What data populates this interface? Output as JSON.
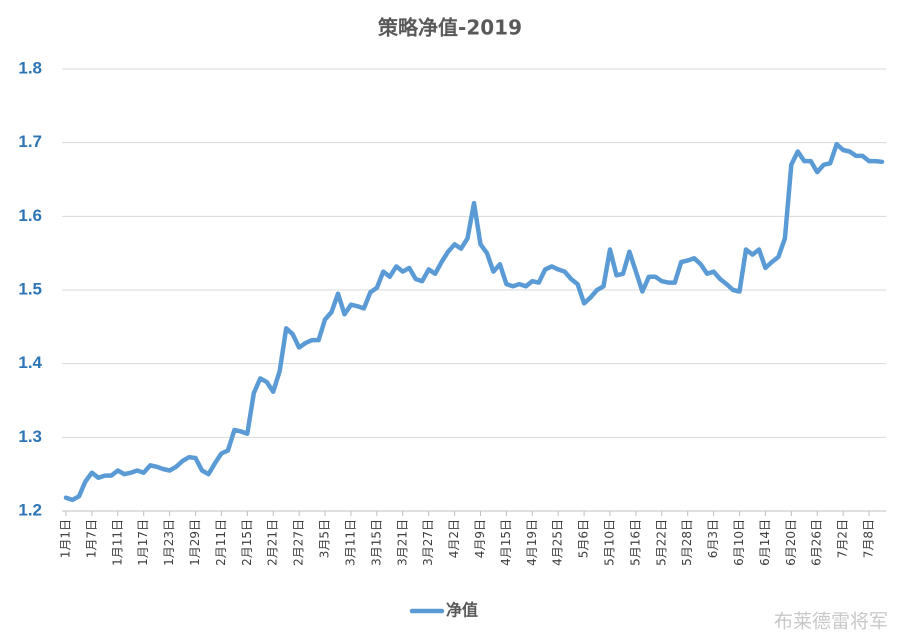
{
  "chart_data": {
    "type": "line",
    "title": "策略净值-2019",
    "categories": [
      "1月1日",
      null,
      null,
      null,
      "1月7日",
      null,
      null,
      null,
      "1月11日",
      null,
      null,
      null,
      "1月17日",
      null,
      null,
      null,
      "1月23日",
      null,
      null,
      null,
      "1月29日",
      null,
      null,
      null,
      "2月11日",
      null,
      null,
      null,
      "2月15日",
      null,
      null,
      null,
      "2月21日",
      null,
      null,
      null,
      "2月27日",
      null,
      null,
      null,
      "3月5日",
      null,
      null,
      null,
      "3月11日",
      null,
      null,
      null,
      "3月15日",
      null,
      null,
      null,
      "3月21日",
      null,
      null,
      null,
      "3月27日",
      null,
      null,
      null,
      "4月2日",
      null,
      null,
      null,
      "4月9日",
      null,
      null,
      null,
      "4月15日",
      null,
      null,
      null,
      "4月19日",
      null,
      null,
      null,
      "4月25日",
      null,
      null,
      null,
      "5月6日",
      null,
      null,
      null,
      "5月10日",
      null,
      null,
      null,
      "5月16日",
      null,
      null,
      null,
      "5月22日",
      null,
      null,
      null,
      "5月28日",
      null,
      null,
      null,
      "6月3日",
      null,
      null,
      null,
      "6月10日",
      null,
      null,
      null,
      "6月14日",
      null,
      null,
      null,
      "6月20日",
      null,
      null,
      null,
      "6月26日",
      null,
      null,
      null,
      "7月2日",
      null,
      null,
      null,
      "7月8日",
      null,
      null
    ],
    "series": [
      {
        "name": "净值",
        "color": "#5b9bd5",
        "values": [
          1.218,
          1.215,
          1.22,
          1.24,
          1.252,
          1.245,
          1.248,
          1.248,
          1.255,
          1.25,
          1.252,
          1.255,
          1.252,
          1.262,
          1.26,
          1.257,
          1.255,
          1.26,
          1.268,
          1.273,
          1.272,
          1.255,
          1.25,
          1.265,
          1.278,
          1.282,
          1.31,
          1.308,
          1.305,
          1.36,
          1.38,
          1.375,
          1.362,
          1.39,
          1.448,
          1.44,
          1.422,
          1.428,
          1.432,
          1.432,
          1.46,
          1.47,
          1.495,
          1.467,
          1.48,
          1.478,
          1.475,
          1.497,
          1.503,
          1.525,
          1.518,
          1.532,
          1.525,
          1.53,
          1.515,
          1.512,
          1.528,
          1.522,
          1.538,
          1.552,
          1.562,
          1.556,
          1.57,
          1.618,
          1.562,
          1.55,
          1.525,
          1.535,
          1.508,
          1.505,
          1.508,
          1.505,
          1.512,
          1.51,
          1.528,
          1.532,
          1.528,
          1.525,
          1.515,
          1.508,
          1.482,
          1.49,
          1.5,
          1.505,
          1.555,
          1.52,
          1.522,
          1.552,
          1.525,
          1.498,
          1.518,
          1.518,
          1.512,
          1.51,
          1.51,
          1.538,
          1.54,
          1.543,
          1.535,
          1.522,
          1.525,
          1.515,
          1.508,
          1.5,
          1.498,
          1.555,
          1.548,
          1.555,
          1.53,
          1.538,
          1.545,
          1.57,
          1.67,
          1.688,
          1.675,
          1.675,
          1.66,
          1.67,
          1.672,
          1.698,
          1.69,
          1.688,
          1.682,
          1.682,
          1.675,
          1.675,
          1.674
        ]
      }
    ],
    "ylim": [
      1.2,
      1.8
    ],
    "yticks": [
      1.2,
      1.3,
      1.4,
      1.5,
      1.6,
      1.7,
      1.8
    ],
    "grid": true,
    "legend": "bottom",
    "watermark": "布莱德雷将军"
  }
}
